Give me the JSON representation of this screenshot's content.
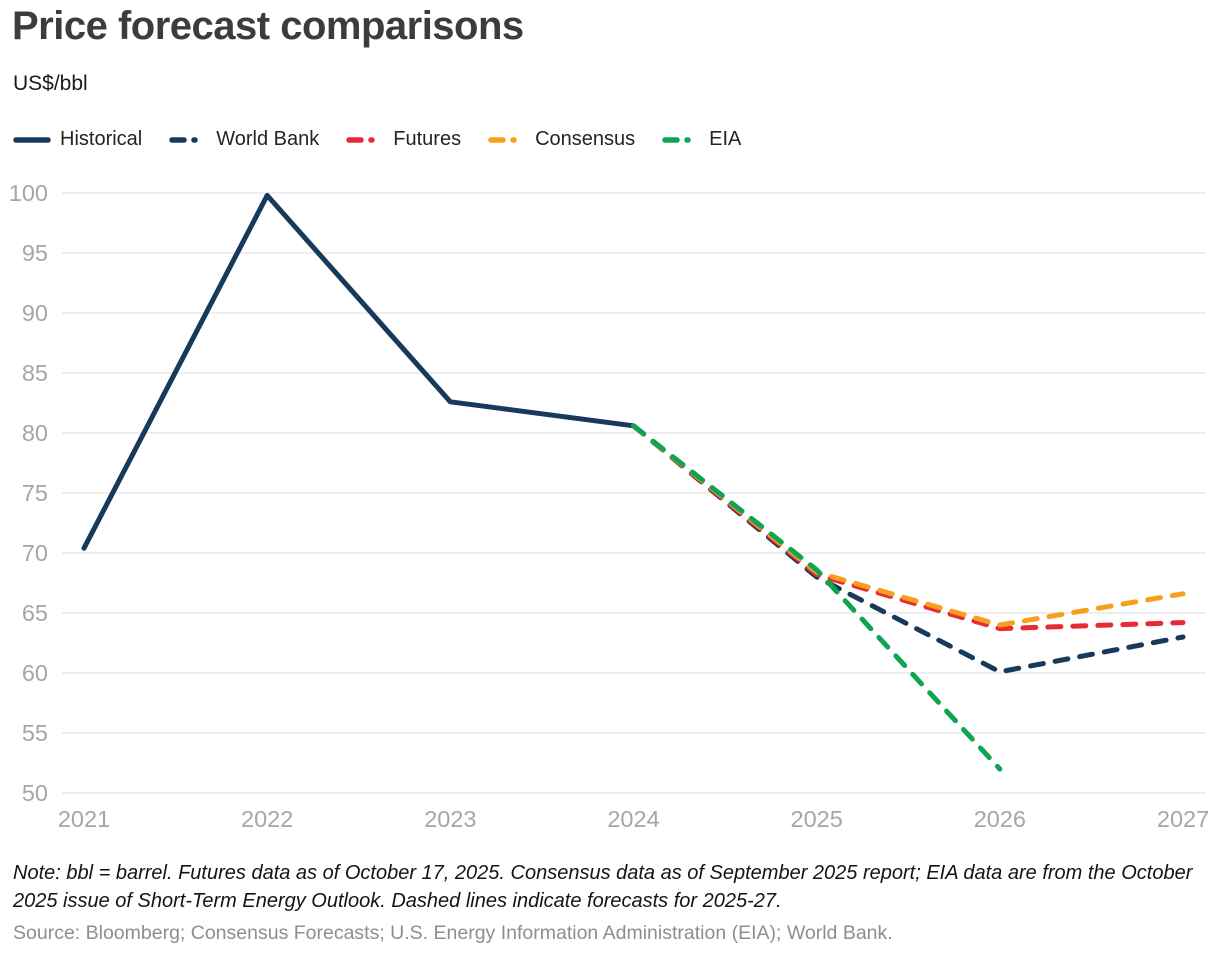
{
  "chart_data": {
    "type": "line",
    "title": "Price forecast comparisons",
    "ylabel": "US$/bbl",
    "xlabel": "",
    "x": [
      2021,
      2022,
      2023,
      2024,
      2025,
      2026,
      2027
    ],
    "series": [
      {
        "name": "Historical",
        "color": "#16395c",
        "dashed": false,
        "values": [
          70.4,
          99.8,
          82.6,
          80.6,
          null,
          null,
          null
        ]
      },
      {
        "name": "World Bank",
        "color": "#16395c",
        "dashed": true,
        "values": [
          null,
          null,
          null,
          80.6,
          68.0,
          60.1,
          63.0
        ]
      },
      {
        "name": "Futures",
        "color": "#e92a35",
        "dashed": true,
        "values": [
          null,
          null,
          null,
          80.6,
          68.2,
          63.7,
          64.2
        ]
      },
      {
        "name": "Consensus",
        "color": "#f8a01d",
        "dashed": true,
        "values": [
          null,
          null,
          null,
          80.6,
          68.4,
          64.0,
          66.6
        ]
      },
      {
        "name": "EIA",
        "color": "#0da551",
        "dashed": true,
        "values": [
          null,
          null,
          null,
          80.6,
          68.6,
          52.0,
          null
        ]
      }
    ],
    "ylim": [
      50,
      100
    ],
    "ytick_step": 5,
    "yticks": [
      50,
      55,
      60,
      65,
      70,
      75,
      80,
      85,
      90,
      95,
      100
    ],
    "grid": "horizontal",
    "gridline_color": "#e8e8e8",
    "axis_text_color": "#a6a6a6",
    "legend_position": "top-left"
  },
  "footer": {
    "note": "Note: bbl = barrel. Futures data as of October 17, 2025. Consensus data as of September 2025 report; EIA data are from the October 2025 issue of Short-Term Energy Outlook. Dashed lines indicate forecasts for 2025-27.",
    "source": "Source: Bloomberg; Consensus Forecasts; U.S. Energy Information Administration (EIA); World Bank."
  }
}
